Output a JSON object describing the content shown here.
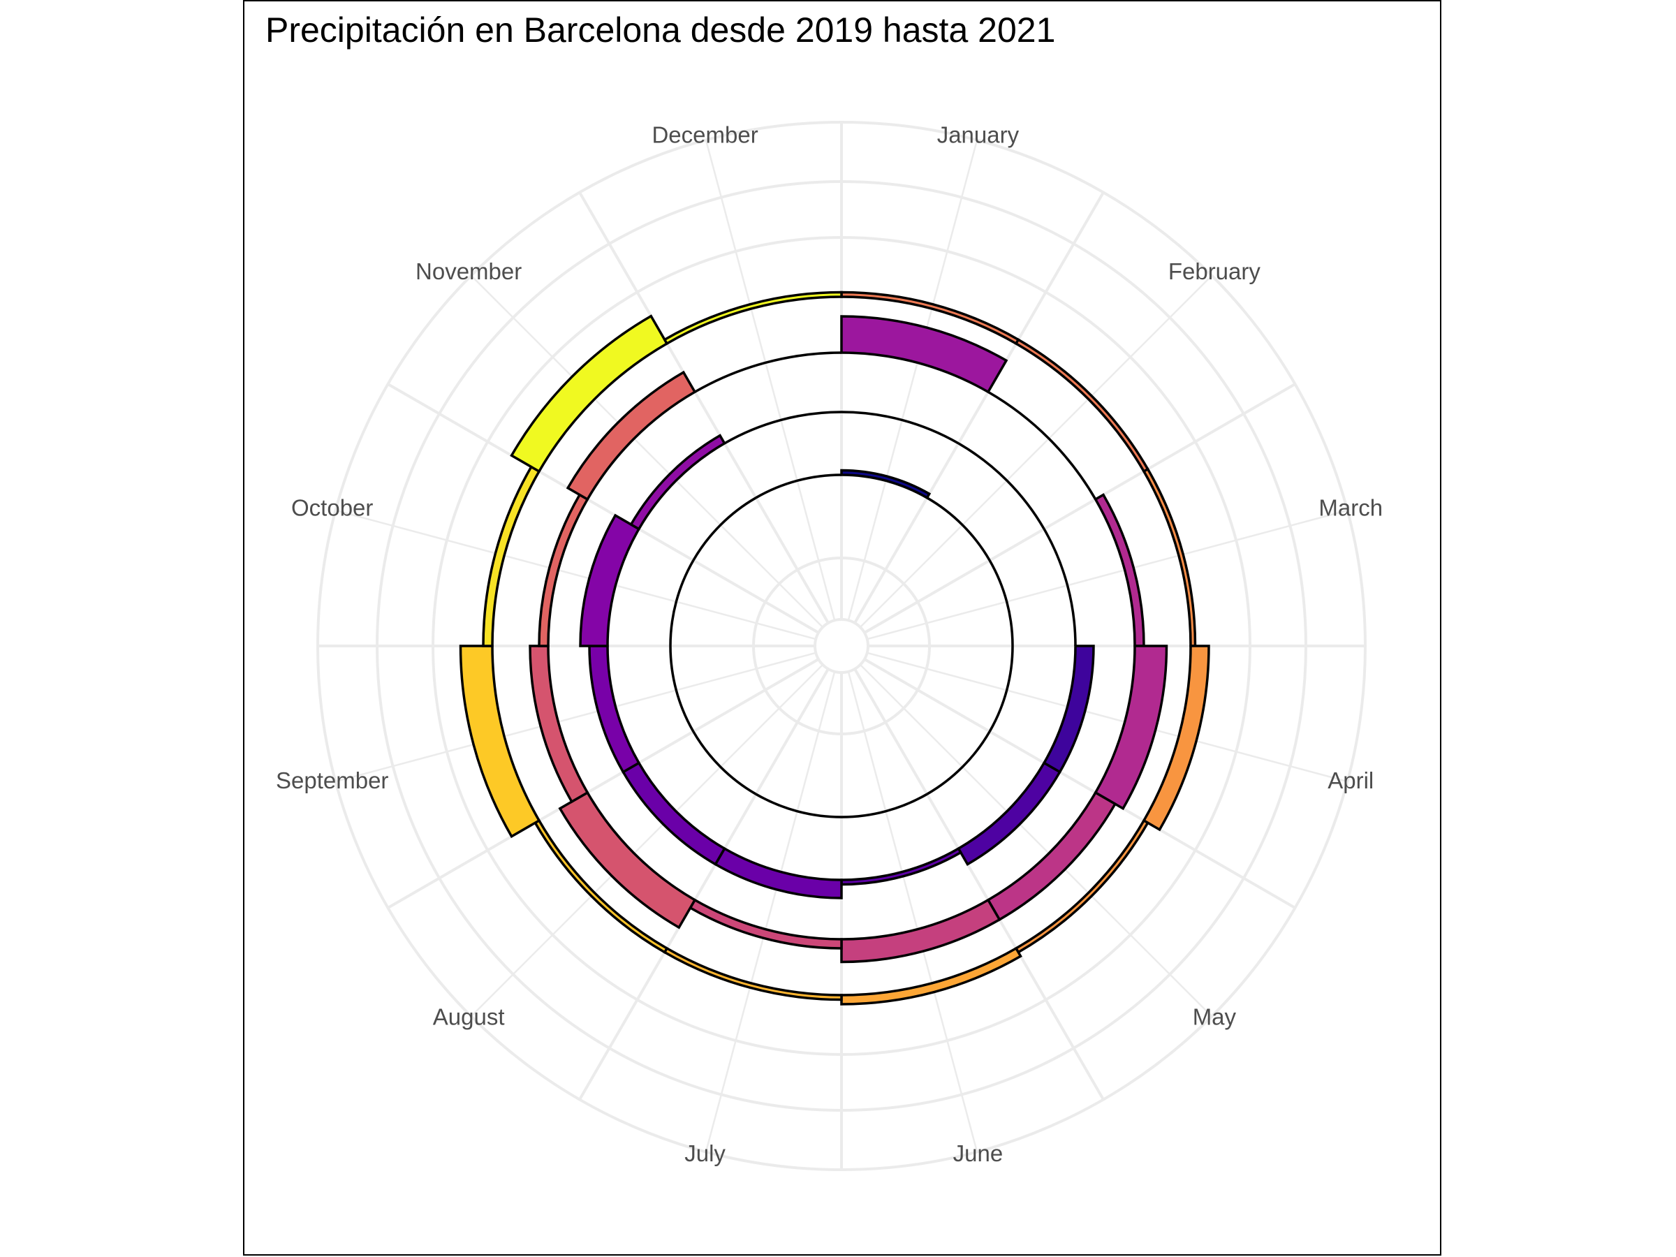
{
  "chart_data": {
    "type": "bar",
    "coordinate_system": "polar",
    "title": "Precipitación en Barcelona desde 2019 hasta 2021",
    "categories": [
      "January",
      "February",
      "March",
      "April",
      "May",
      "June",
      "July",
      "August",
      "September",
      "October",
      "November",
      "December"
    ],
    "grid": true,
    "legend": "none",
    "colormap": "plasma",
    "rings": [
      {
        "values": [
          1,
          0,
          0,
          0,
          0,
          0,
          0,
          0,
          0,
          0,
          0,
          0
        ],
        "colors": [
          "#0d0887",
          "#0d0887",
          "#0d0887",
          "#0d0887",
          "#0d0887",
          "#0d0887",
          "#0d0887",
          "#0d0887",
          "#0d0887",
          "#0d0887",
          "#0d0887",
          "#0d0887"
        ]
      },
      {
        "values": [
          0,
          0,
          0,
          4,
          4,
          1,
          4,
          4,
          4,
          6,
          2,
          0
        ],
        "colors": [
          "#2c0594",
          "#2c0594",
          "#2c0594",
          "#3e049c",
          "#4e02a2",
          "#5d01a6",
          "#6a00a8",
          "#6a00a8",
          "#7801a8",
          "#8405a7",
          "#8f0da4",
          "#8f0da4"
        ]
      },
      {
        "values": [
          8,
          0,
          2,
          7,
          5,
          5,
          2,
          7,
          4,
          2,
          5,
          0
        ],
        "colors": [
          "#9c179e",
          "#9c179e",
          "#b12a90",
          "#b12a90",
          "#bc3587",
          "#c5407e",
          "#cc4778",
          "#d5546e",
          "#d5546e",
          "#e16462",
          "#e16462",
          "#e16462"
        ]
      },
      {
        "values": [
          1,
          1,
          1,
          4,
          1,
          2,
          1,
          1,
          7,
          2,
          7,
          1
        ],
        "colors": [
          "#ed7953",
          "#ed7953",
          "#f58c46",
          "#f89540",
          "#f89540",
          "#fca636",
          "#fdb42f",
          "#fdc328",
          "#fdc926",
          "#f7e225",
          "#f0f921",
          "#f0f921"
        ]
      }
    ]
  }
}
